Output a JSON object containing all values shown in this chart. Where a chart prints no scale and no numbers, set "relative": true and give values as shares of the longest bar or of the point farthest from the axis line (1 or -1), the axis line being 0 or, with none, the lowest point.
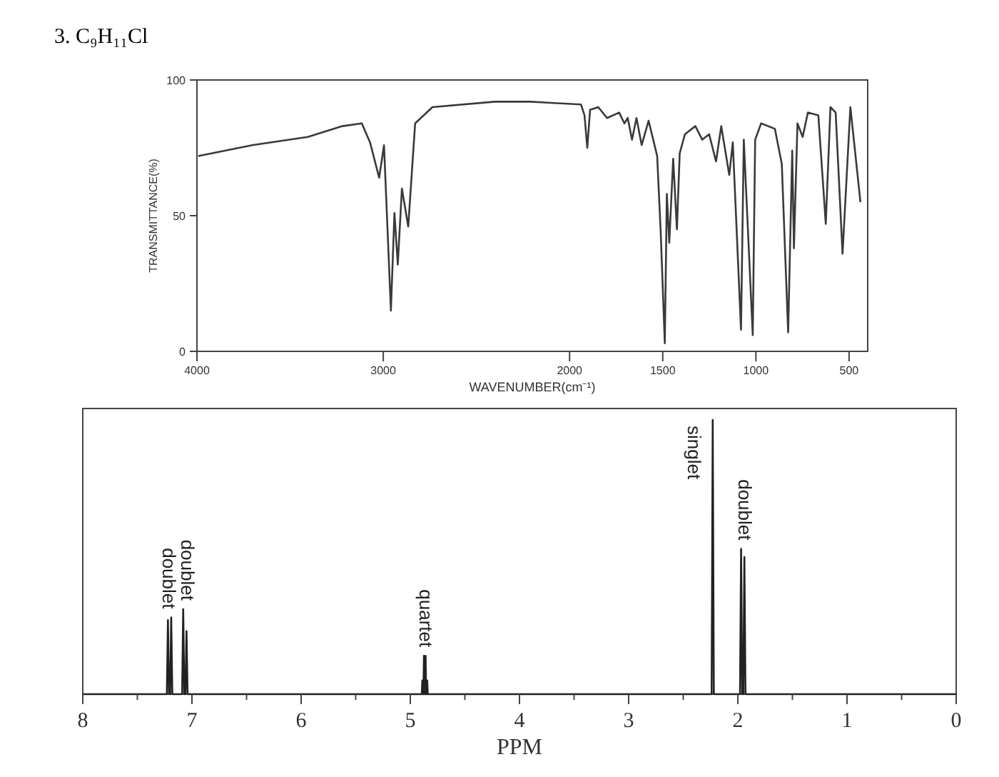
{
  "chart_data": [
    {
      "type": "line",
      "title": "3. C₉H₁₁Cl",
      "xlabel": "WAVENUMBER(cm⁻¹)",
      "ylabel": "TRANSMITTANCE(%)",
      "xlim": [
        4000,
        400
      ],
      "xticks": [
        4000,
        3000,
        2000,
        1500,
        1000,
        500
      ],
      "ylim": [
        0,
        100
      ],
      "yticks": [
        0,
        50,
        100
      ],
      "series": [
        {
          "color": "#3a3a3a",
          "x": [
            3993,
            3703,
            3405,
            3219,
            3115,
            3071,
            3022,
            2996,
            2959,
            2940,
            2922,
            2900,
            2866,
            2829,
            2736,
            2400,
            2213,
            1939,
            1920,
            1905,
            1890,
            1846,
            1799,
            1734,
            1706,
            1688,
            1665,
            1641,
            1613,
            1576,
            1530,
            1511,
            1489,
            1478,
            1465,
            1444,
            1424,
            1409,
            1381,
            1325,
            1288,
            1251,
            1214,
            1186,
            1143,
            1124,
            1080,
            1065,
            1017,
            1004,
            972,
            898,
            861,
            827,
            805,
            796,
            777,
            749,
            721,
            665,
            625,
            600,
            572,
            535,
            493,
            439
          ],
          "values": [
            72,
            76,
            79,
            83,
            84,
            77,
            64,
            76,
            15,
            51,
            32,
            60,
            46,
            84,
            90,
            92,
            92,
            91,
            87,
            75,
            89,
            90,
            86,
            88,
            84,
            86,
            78,
            86,
            76,
            85,
            72,
            44,
            3,
            58,
            40,
            71,
            45,
            73,
            80,
            83,
            78,
            80,
            70,
            83,
            65,
            77,
            8,
            78,
            6,
            78,
            84,
            82,
            69,
            7,
            74,
            38,
            84,
            79,
            88,
            87,
            47,
            90,
            88,
            36,
            90,
            55
          ]
        }
      ]
    },
    {
      "type": "line",
      "xlabel": "PPM",
      "relative": true,
      "xlim": [
        8,
        0
      ],
      "xticks": [
        8,
        {
          "value": 7.5,
          "label": null
        },
        7,
        {
          "value": 6.5,
          "label": null
        },
        6,
        {
          "value": 5.5,
          "label": null
        },
        5,
        {
          "value": 4.5,
          "label": null
        },
        4,
        {
          "value": 3.5,
          "label": null
        },
        3,
        {
          "value": 2.5,
          "label": null
        },
        2,
        {
          "value": 1.5,
          "label": null
        },
        1,
        {
          "value": 0.5,
          "label": null
        },
        0
      ],
      "series": [
        {
          "color": "#222222",
          "x": [
            8,
            7.23,
            7.22,
            7.21,
            7.2,
            7.19,
            7.18,
            7.09,
            7.08,
            7.07,
            7.06,
            7.05,
            7.04,
            4.895,
            4.89,
            4.885,
            4.88,
            4.875,
            4.87,
            4.865,
            4.86,
            4.855,
            4.85,
            4.845,
            4.84,
            2.24,
            2.23,
            2.22,
            1.98,
            1.97,
            1.96,
            1.95,
            1.94,
            1.93,
            0
          ],
          "values": [
            0,
            0,
            0.27,
            0,
            0,
            0.28,
            0,
            0,
            0.31,
            0,
            0,
            0.23,
            0,
            0,
            0.05,
            0,
            0,
            0.14,
            0,
            0,
            0.14,
            0,
            0,
            0.05,
            0,
            0,
            1,
            0,
            0,
            0.53,
            0,
            0,
            0.5,
            0,
            0
          ]
        }
      ],
      "annotations": [
        {
          "text": "doublet",
          "x": 7.22,
          "y": 0.28
        },
        {
          "text": "doublet",
          "x": 7.05,
          "y": 0.31
        },
        {
          "text": "quartet",
          "x": 4.87,
          "y": 0.14
        },
        {
          "text": "singlet",
          "x": 2.23,
          "y": 1
        },
        {
          "text": "doublet",
          "x": 1.95,
          "y": 0.53
        }
      ]
    }
  ]
}
